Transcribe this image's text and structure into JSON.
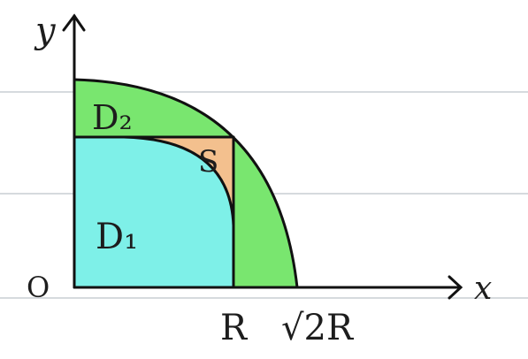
{
  "labels": {
    "y_axis": "y",
    "x_axis": "x",
    "origin": "O",
    "tick_r": "R",
    "tick_sqrt2r": "√2R",
    "region_d1": "D₁",
    "region_d2": "D₂",
    "region_s": "S"
  },
  "colors": {
    "paper": "#ffffff",
    "ruled_lines": "#c9ced4",
    "d1_fill": "#7ef0e8",
    "d2_fill": "#79e66f",
    "s_fill": "#f3c08e",
    "ink": "#111111"
  }
}
